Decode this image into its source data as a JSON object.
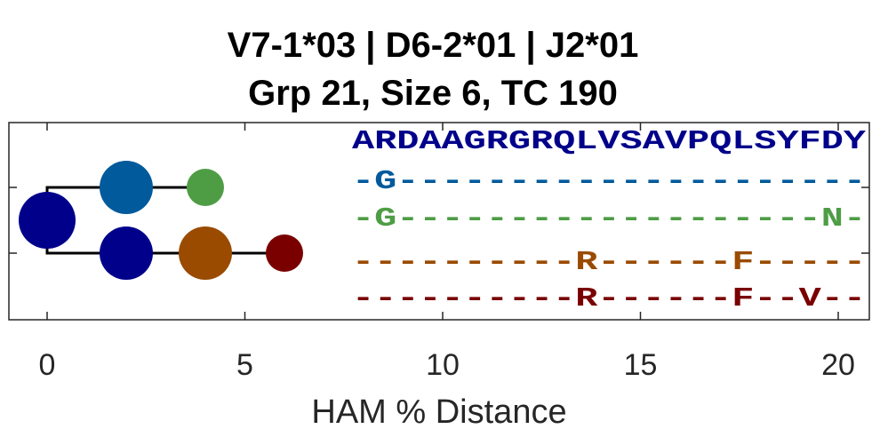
{
  "chart_data": {
    "type": "tree",
    "title": [
      "V7-1*03 | D6-2*01 | J2*01",
      "Grp 21, Size 6, TC 190"
    ],
    "xlabel": "HAM % Distance",
    "xlim": [
      -1,
      21
    ],
    "x_ticks": [
      0,
      5,
      10,
      15,
      20
    ],
    "x_tick_labels": [
      "0",
      "5",
      "10",
      "15",
      "20"
    ],
    "nodes": [
      {
        "id": "root",
        "x": 0,
        "row": 2,
        "color": "#00008B",
        "size": "large"
      },
      {
        "id": "n1",
        "x": 2,
        "row": 1,
        "parent": "root",
        "color": "#005A9C",
        "size": "medium"
      },
      {
        "id": "n2",
        "x": 4,
        "row": 1,
        "parent": "n1",
        "color": "#4E9D45",
        "size": "small"
      },
      {
        "id": "n3",
        "x": 2,
        "row": 3,
        "parent": "root",
        "color": "#00008B",
        "size": "medium"
      },
      {
        "id": "n4",
        "x": 4,
        "row": 3,
        "parent": "n3",
        "color": "#9A4B00",
        "size": "medium"
      },
      {
        "id": "n5",
        "x": 6,
        "row": 3,
        "parent": "n4",
        "color": "#7A0000",
        "size": "small"
      }
    ],
    "sequences": [
      {
        "text": "ARDAAGRGRQLVSAVPQLSYFDY",
        "color": "#00008B"
      },
      {
        "text": "-G---------------------",
        "color": "#005A9C"
      },
      {
        "text": "-G-------------------N-",
        "color": "#4E9D45"
      },
      {
        "text": "----------R------F-----",
        "color": "#9A4B00"
      },
      {
        "text": "----------R------F--V--",
        "color": "#7A0000"
      }
    ]
  }
}
